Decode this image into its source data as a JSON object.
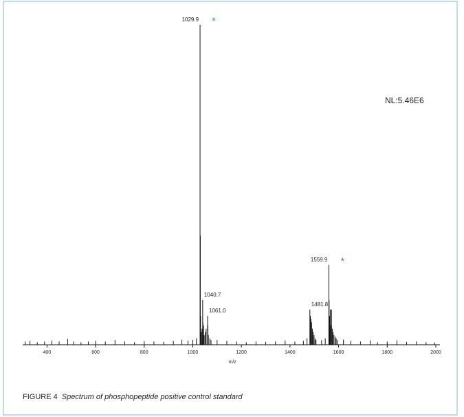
{
  "chart_data": {
    "type": "spectrum",
    "xlabel": "m/z",
    "normalization": "NL:5.46E6",
    "caption": {
      "label": "FIGURE 4",
      "text": "Spectrum of phosphopeptide positive control standard"
    },
    "x": [
      310,
      330,
      360,
      390,
      420,
      450,
      485,
      510,
      540,
      570,
      600,
      640,
      680,
      720,
      760,
      800,
      840,
      880,
      920,
      955,
      980,
      1000,
      1015,
      1029.9,
      1030.9,
      1031.9,
      1035,
      1038,
      1040.7,
      1041.7,
      1044,
      1047,
      1051,
      1055,
      1061.0,
      1062,
      1064,
      1070,
      1075,
      1100,
      1140,
      1180,
      1220,
      1260,
      1300,
      1340,
      1380,
      1420,
      1455,
      1470,
      1481.8,
      1484,
      1486,
      1489,
      1492,
      1495,
      1499,
      1503,
      1507,
      1530,
      1545,
      1559.9,
      1561,
      1563,
      1566,
      1568,
      1571,
      1574,
      1577,
      1581,
      1586,
      1590,
      1595,
      1620,
      1650,
      1690,
      1730,
      1760,
      1800,
      1840,
      1880,
      1920,
      1960,
      1995
    ],
    "values": [
      1,
      1.2,
      0.8,
      1,
      1.3,
      1,
      1.8,
      1,
      0.8,
      1,
      1.2,
      1,
      1.5,
      1,
      0.8,
      1.1,
      1,
      0.9,
      1.2,
      1.6,
      1.3,
      1.5,
      2,
      100,
      34,
      9,
      4,
      5,
      14,
      7,
      6,
      3,
      4,
      5,
      9,
      6,
      3,
      2,
      1.5,
      1.5,
      1.2,
      1,
      0.8,
      1,
      0.9,
      1,
      1.3,
      1,
      1.2,
      2,
      11,
      9,
      8,
      7,
      5,
      4,
      3,
      2,
      1.5,
      1.4,
      2,
      25,
      14,
      9,
      11,
      6,
      11,
      5,
      4,
      3,
      2.5,
      2,
      1.5,
      1.6,
      1.2,
      1,
      1.3,
      0.8,
      1,
      1.4,
      0.9,
      1,
      0.8,
      0.7
    ],
    "color": "#111111",
    "star_color": "#2e9e44",
    "annotations": [
      {
        "x": 1029.9,
        "y": 100,
        "label": "1029.9",
        "star": "*"
      },
      {
        "x": 1040.7,
        "y": 14,
        "label": "1040.7"
      },
      {
        "x": 1061.0,
        "y": 9,
        "label": "1061.0"
      },
      {
        "x": 1481.8,
        "y": 11,
        "label": "1481.8"
      },
      {
        "x": 1559.9,
        "y": 25,
        "label": "1559.9",
        "star": "*"
      }
    ],
    "xlim": [
      300,
      2017
    ],
    "ylim": [
      0,
      100
    ],
    "xticks": [
      400,
      600,
      800,
      1000,
      1200,
      1400,
      1600,
      1800,
      2000
    ]
  }
}
